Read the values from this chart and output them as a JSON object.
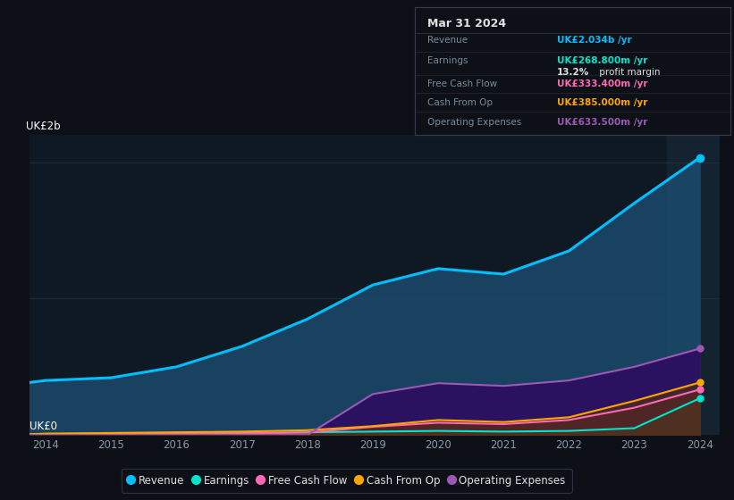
{
  "bg_color": "#0d1117",
  "plot_bg_color": "#0f1923",
  "years": [
    2013.75,
    2014,
    2015,
    2016,
    2017,
    2018,
    2019,
    2020,
    2021,
    2022,
    2023,
    2024
  ],
  "revenue": [
    0.385,
    0.4,
    0.42,
    0.5,
    0.65,
    0.85,
    1.1,
    1.22,
    1.18,
    1.35,
    1.7,
    2.034
  ],
  "earnings": [
    0.005,
    0.008,
    0.01,
    0.012,
    0.015,
    0.02,
    0.025,
    0.03,
    0.025,
    0.03,
    0.05,
    0.2688
  ],
  "free_cash_flow": [
    0.002,
    0.005,
    0.008,
    0.01,
    0.012,
    0.018,
    0.06,
    0.09,
    0.08,
    0.11,
    0.2,
    0.3334
  ],
  "cash_from_op": [
    0.005,
    0.01,
    0.015,
    0.02,
    0.025,
    0.035,
    0.065,
    0.11,
    0.095,
    0.13,
    0.25,
    0.385
  ],
  "operating_expenses": [
    0.0,
    0.0,
    0.0,
    0.0,
    0.0,
    0.0,
    0.3,
    0.38,
    0.36,
    0.4,
    0.5,
    0.6335
  ],
  "revenue_color": "#00bfff",
  "earnings_color": "#00e5cc",
  "fcf_color": "#ff69b4",
  "cashop_color": "#ffa500",
  "opex_color": "#9b59b6",
  "revenue_fill": "#1a4a6b",
  "earnings_fill": "#1a5a4a",
  "fcf_fill": "#5a1540",
  "cashop_fill": "#5a3800",
  "opex_fill": "#2d1060",
  "ylabel": "UK£2b",
  "y0label": "UK£0",
  "ylim": [
    0,
    2.2
  ],
  "xlim": [
    2013.75,
    2024.3
  ],
  "grid_color": "#1e2d3d",
  "xticks": [
    2014,
    2015,
    2016,
    2017,
    2018,
    2019,
    2020,
    2021,
    2022,
    2023,
    2024
  ],
  "info_box": {
    "date": "Mar 31 2024",
    "revenue_label": "Revenue",
    "revenue_value": "UK£2.034b",
    "earnings_label": "Earnings",
    "earnings_value": "UK£268.800m",
    "margin_value": "13.2%",
    "margin_suffix": " profit margin",
    "fcf_label": "Free Cash Flow",
    "fcf_value": "UK£333.400m",
    "cashop_label": "Cash From Op",
    "cashop_value": "UK£385.000m",
    "opex_label": "Operating Expenses",
    "opex_value": "UK£633.500m"
  },
  "legend": [
    {
      "label": "Revenue",
      "color": "#00bfff"
    },
    {
      "label": "Earnings",
      "color": "#00e5cc"
    },
    {
      "label": "Free Cash Flow",
      "color": "#ff69b4"
    },
    {
      "label": "Cash From Op",
      "color": "#ffa500"
    },
    {
      "label": "Operating Expenses",
      "color": "#9b59b6"
    }
  ]
}
